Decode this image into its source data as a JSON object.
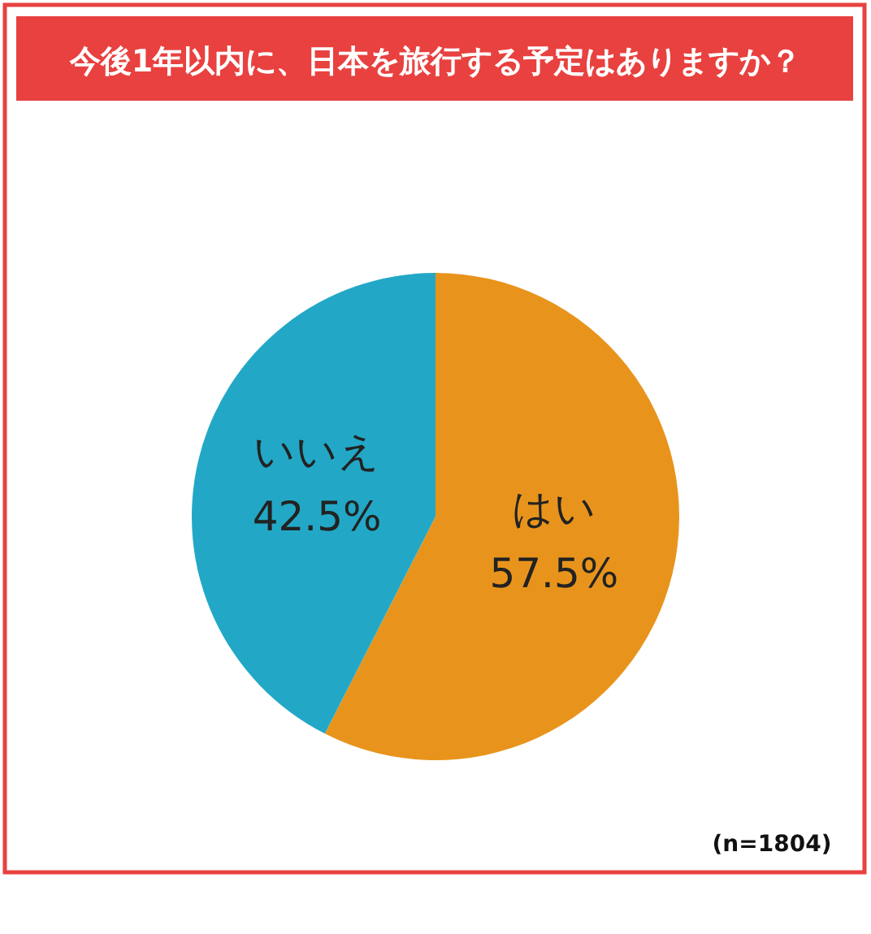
{
  "chart_data": {
    "type": "pie",
    "title": "今後1年以内に、日本を旅行する予定はありますか？",
    "categories": [
      "はい",
      "いいえ"
    ],
    "values": [
      57.5,
      42.5
    ],
    "colors": [
      "#e8941c",
      "#22a8c6"
    ],
    "value_labels": [
      "57.5%",
      "42.5%"
    ],
    "annotations": [
      "(n=1804)"
    ]
  }
}
